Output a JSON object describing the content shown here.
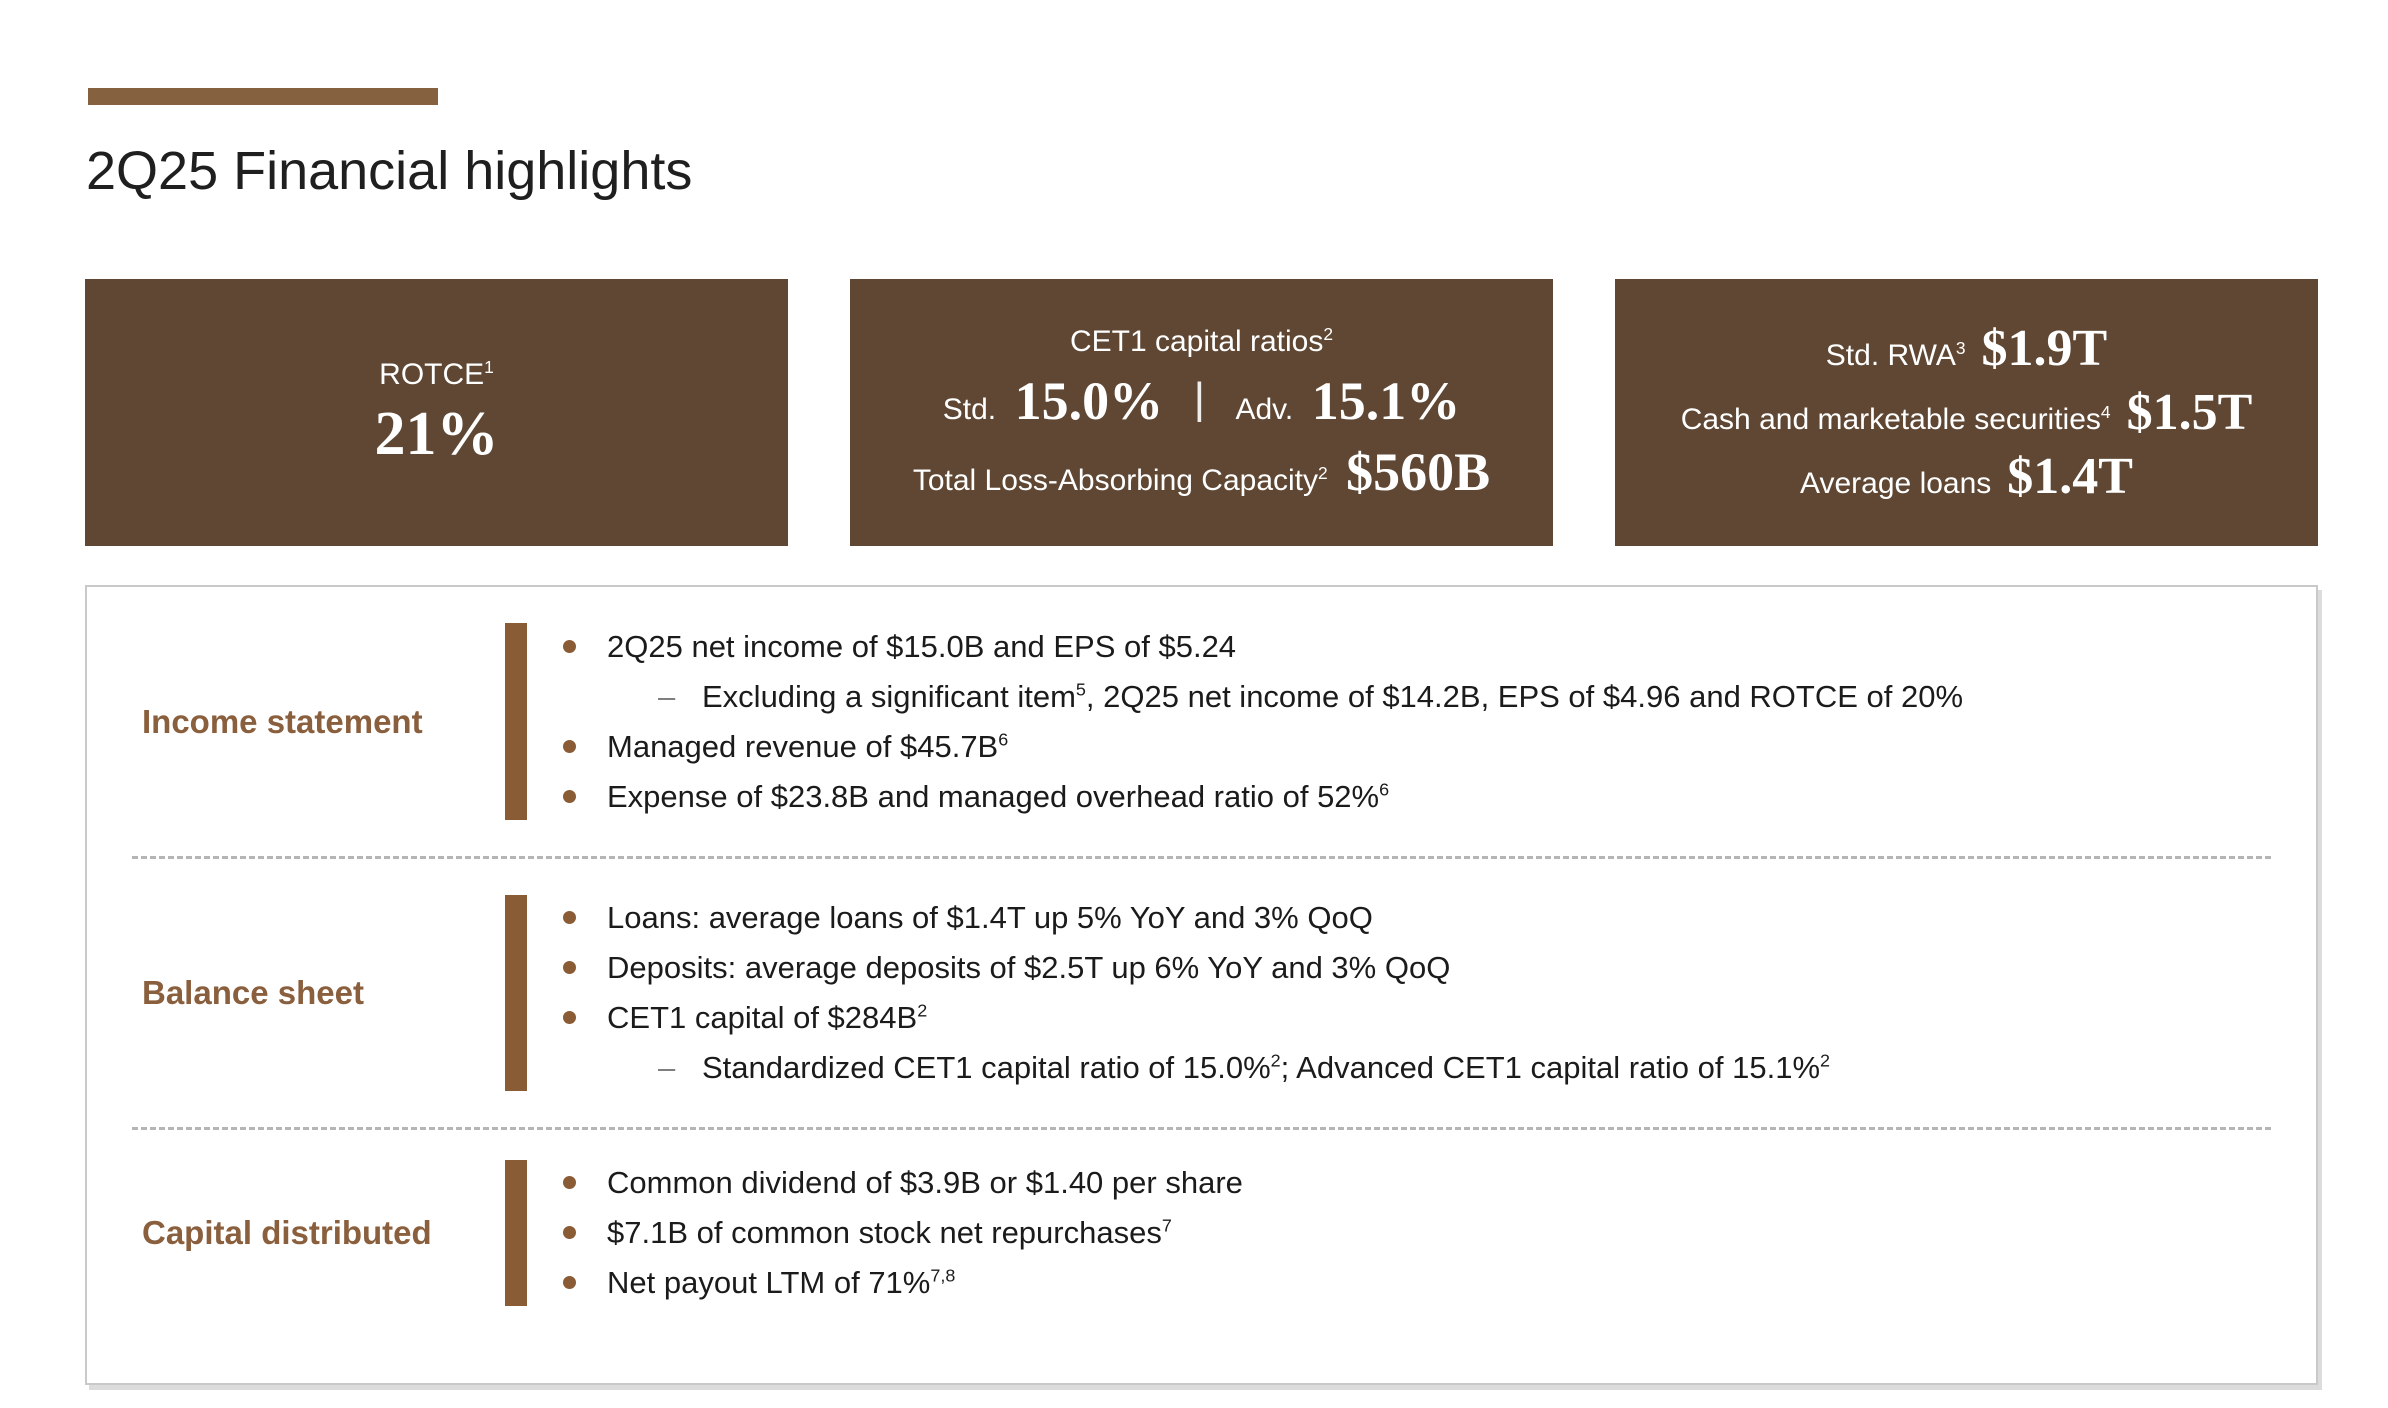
{
  "title": "2Q25 Financial highlights",
  "colors": {
    "box_brown": "#5F4733",
    "accent_brown": "#86613F",
    "bar_brown": "#8A5C36",
    "label_brown": "#8A5F3D"
  },
  "stats": {
    "rotce": {
      "label": "ROTCE^{1}",
      "value": "21%"
    },
    "cet1": {
      "title": "CET1 capital ratios^{2}",
      "std_label": "Std.",
      "std_value": "15.0%",
      "separator": "|",
      "adv_label": "Adv.",
      "adv_value": "15.1%",
      "tlac_label": "Total Loss-Absorbing Capacity^{2}",
      "tlac_value": "$560B"
    },
    "balance": {
      "rows": [
        {
          "label": "Std. RWA^{3}",
          "value": "$1.9T"
        },
        {
          "label": "Cash and marketable securities^{4}",
          "value": "$1.5T"
        },
        {
          "label": "Average loans",
          "value": "$1.4T"
        }
      ]
    }
  },
  "sections": [
    {
      "heading": "Income statement",
      "bullets": [
        {
          "level": 1,
          "text": "2Q25 net income of $15.0B and EPS of $5.24"
        },
        {
          "level": 2,
          "text": "Excluding a significant item^{5}, 2Q25 net income of $14.2B, EPS of $4.96 and ROTCE of 20%"
        },
        {
          "level": 1,
          "text": "Managed revenue of $45.7B^{6}"
        },
        {
          "level": 1,
          "text": "Expense of $23.8B and managed overhead ratio of 52%^{6}"
        }
      ]
    },
    {
      "heading": "Balance sheet",
      "bullets": [
        {
          "level": 1,
          "text": "Loans: average loans of $1.4T up 5% YoY and 3% QoQ"
        },
        {
          "level": 1,
          "text": "Deposits: average deposits of $2.5T up 6% YoY and 3% QoQ"
        },
        {
          "level": 1,
          "text": "CET1 capital of $284B^{2}"
        },
        {
          "level": 2,
          "text": "Standardized CET1 capital ratio of 15.0%^{2}; Advanced CET1 capital ratio of 15.1%^{2}"
        }
      ]
    },
    {
      "heading": "Capital distributed",
      "bullets": [
        {
          "level": 1,
          "text": "Common dividend of $3.9B or $1.40 per share"
        },
        {
          "level": 1,
          "text": "$7.1B of common stock net repurchases^{7}"
        },
        {
          "level": 1,
          "text": "Net payout LTM of 71%^{7,8}"
        }
      ]
    }
  ]
}
